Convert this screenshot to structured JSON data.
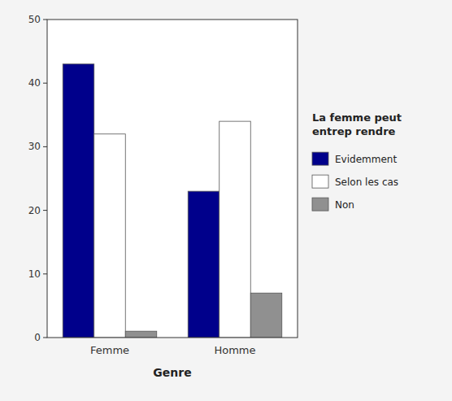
{
  "chart_data": {
    "type": "bar",
    "x_label": "Genre",
    "legend_title": "La femme peut\nentrep rendre",
    "categories": [
      "Femme",
      "Homme"
    ],
    "series": [
      {
        "name": "Evidemment",
        "color": "#00008B",
        "values": [
          43,
          23
        ]
      },
      {
        "name": "Selon les cas",
        "color": "#FFFFFF",
        "values": [
          32,
          34
        ]
      },
      {
        "name": "Non",
        "color": "#909090",
        "values": [
          1,
          7
        ]
      }
    ],
    "ylim": [
      0,
      50
    ],
    "yticks": [
      0,
      10,
      20,
      30,
      40,
      50
    ],
    "grid": false,
    "legend": "right"
  }
}
